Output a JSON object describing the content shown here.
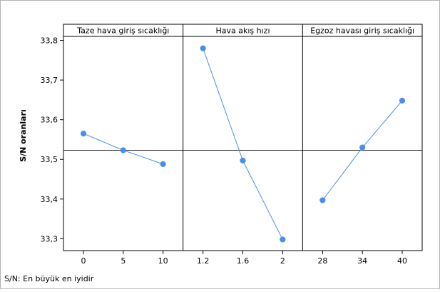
{
  "chart_data": {
    "type": "line",
    "ylabel": "S/N oranları",
    "footnote": "S/N: En büyük en iyidir",
    "ylim": [
      33.27,
      33.81
    ],
    "y_ticks": [
      "33,3",
      "33,4",
      "33,5",
      "33,6",
      "33,7",
      "33,8"
    ],
    "y_tick_values": [
      33.3,
      33.4,
      33.5,
      33.6,
      33.7,
      33.8
    ],
    "reference_line": 33.523,
    "grid": false,
    "marker_color": "#4a90e2",
    "line_color": "#4a90e2",
    "panels": [
      {
        "title": "Taze hava giriş sıcaklığı",
        "categories": [
          "0",
          "5",
          "10"
        ],
        "values": [
          33.565,
          33.523,
          33.488
        ]
      },
      {
        "title": "Hava akış hızı",
        "categories": [
          "1.2",
          "1.6",
          "2"
        ],
        "values": [
          33.78,
          33.497,
          33.298
        ]
      },
      {
        "title": "Egzoz havası giriş sıcaklığı",
        "categories": [
          "28",
          "34",
          "40"
        ],
        "values": [
          33.397,
          33.53,
          33.648
        ]
      }
    ]
  }
}
